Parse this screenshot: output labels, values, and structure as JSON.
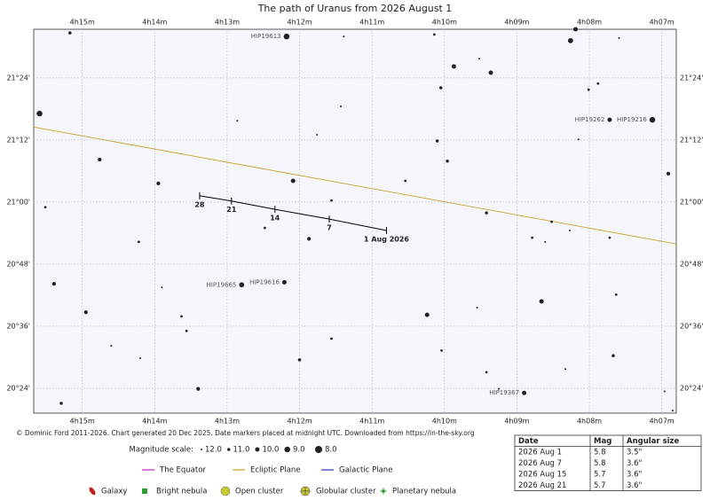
{
  "chart_data": {
    "type": "scatter",
    "title": "The path of Uranus from 2026 August 1",
    "xlim": [
      255.67,
      246.8
    ],
    "ylim": [
      1219.2,
      1293.4
    ],
    "xticks": [
      {
        "value": 255,
        "label": "4h15m"
      },
      {
        "value": 254,
        "label": "4h14m"
      },
      {
        "value": 253,
        "label": "4h13m"
      },
      {
        "value": 252,
        "label": "4h12m"
      },
      {
        "value": 251,
        "label": "4h11m"
      },
      {
        "value": 250,
        "label": "4h10m"
      },
      {
        "value": 249,
        "label": "4h09m"
      },
      {
        "value": 248,
        "label": "4h08m"
      },
      {
        "value": 247,
        "label": "4h07m"
      }
    ],
    "yticks": [
      {
        "value": 1224,
        "label": "20°24'"
      },
      {
        "value": 1236,
        "label": "20°36'"
      },
      {
        "value": 1248,
        "label": "20°48'"
      },
      {
        "value": 1260,
        "label": "21°00'"
      },
      {
        "value": 1272,
        "label": "21°12'"
      },
      {
        "value": 1284,
        "label": "21°24'"
      }
    ],
    "grid": true,
    "stars": [
      {
        "x": 255.17,
        "y": 1292.7,
        "mag": 11
      },
      {
        "x": 252.18,
        "y": 1292.0,
        "mag": 9,
        "label": "HIP19613"
      },
      {
        "x": 251.39,
        "y": 1292.0,
        "mag": 12
      },
      {
        "x": 250.14,
        "y": 1292.4,
        "mag": 11.5
      },
      {
        "x": 248.19,
        "y": 1293.4,
        "mag": 10
      },
      {
        "x": 248.26,
        "y": 1291.2,
        "mag": 9.5
      },
      {
        "x": 247.59,
        "y": 1291.7,
        "mag": 12
      },
      {
        "x": 249.52,
        "y": 1287.7,
        "mag": 12
      },
      {
        "x": 249.87,
        "y": 1286.2,
        "mag": 10
      },
      {
        "x": 249.36,
        "y": 1285.0,
        "mag": 10
      },
      {
        "x": 247.88,
        "y": 1282.9,
        "mag": 11.5
      },
      {
        "x": 248.01,
        "y": 1281.7,
        "mag": 11.5
      },
      {
        "x": 250.05,
        "y": 1282.1,
        "mag": 11
      },
      {
        "x": 255.59,
        "y": 1277.1,
        "mag": 9
      },
      {
        "x": 251.43,
        "y": 1278.5,
        "mag": 12
      },
      {
        "x": 252.86,
        "y": 1275.7,
        "mag": 12
      },
      {
        "x": 247.72,
        "y": 1275.9,
        "mag": 10,
        "label": "HIP19262"
      },
      {
        "x": 247.13,
        "y": 1275.9,
        "mag": 9,
        "label": "HIP19216"
      },
      {
        "x": 251.76,
        "y": 1273.0,
        "mag": 12
      },
      {
        "x": 250.1,
        "y": 1271.8,
        "mag": 11
      },
      {
        "x": 248.15,
        "y": 1272.1,
        "mag": 12
      },
      {
        "x": 254.76,
        "y": 1268.2,
        "mag": 10.5
      },
      {
        "x": 249.96,
        "y": 1267.9,
        "mag": 11
      },
      {
        "x": 252.09,
        "y": 1264.1,
        "mag": 10
      },
      {
        "x": 253.95,
        "y": 1263.6,
        "mag": 10.5
      },
      {
        "x": 250.54,
        "y": 1264.1,
        "mag": 11.5
      },
      {
        "x": 246.91,
        "y": 1265.5,
        "mag": 10.5
      },
      {
        "x": 251.56,
        "y": 1260.3,
        "mag": 11.5
      },
      {
        "x": 255.51,
        "y": 1259.0,
        "mag": 11.5
      },
      {
        "x": 249.42,
        "y": 1257.9,
        "mag": 11
      },
      {
        "x": 248.52,
        "y": 1256.2,
        "mag": 11.5
      },
      {
        "x": 248.27,
        "y": 1254.5,
        "mag": 12
      },
      {
        "x": 252.48,
        "y": 1255.0,
        "mag": 11.5
      },
      {
        "x": 251.87,
        "y": 1252.9,
        "mag": 10.5
      },
      {
        "x": 254.22,
        "y": 1252.3,
        "mag": 11.5
      },
      {
        "x": 248.79,
        "y": 1253.1,
        "mag": 11.5
      },
      {
        "x": 248.61,
        "y": 1252.3,
        "mag": 12
      },
      {
        "x": 247.72,
        "y": 1253.1,
        "mag": 11.5
      },
      {
        "x": 255.39,
        "y": 1244.2,
        "mag": 10.5
      },
      {
        "x": 252.21,
        "y": 1244.5,
        "mag": 10,
        "label": "HIP19616"
      },
      {
        "x": 252.8,
        "y": 1244.0,
        "mag": 9.5,
        "label": "HIP19665"
      },
      {
        "x": 253.9,
        "y": 1243.5,
        "mag": 12
      },
      {
        "x": 247.63,
        "y": 1242.1,
        "mag": 11.5
      },
      {
        "x": 254.95,
        "y": 1238.7,
        "mag": 10.5
      },
      {
        "x": 248.66,
        "y": 1240.8,
        "mag": 10
      },
      {
        "x": 250.24,
        "y": 1238.2,
        "mag": 10
      },
      {
        "x": 253.63,
        "y": 1237.9,
        "mag": 11.5
      },
      {
        "x": 249.55,
        "y": 1239.6,
        "mag": 12
      },
      {
        "x": 253.56,
        "y": 1235.1,
        "mag": 11.5
      },
      {
        "x": 251.56,
        "y": 1233.6,
        "mag": 11.5
      },
      {
        "x": 254.6,
        "y": 1232.2,
        "mag": 12
      },
      {
        "x": 250.04,
        "y": 1231.3,
        "mag": 11.5
      },
      {
        "x": 254.2,
        "y": 1229.8,
        "mag": 12
      },
      {
        "x": 252.0,
        "y": 1229.5,
        "mag": 11
      },
      {
        "x": 247.67,
        "y": 1230.3,
        "mag": 11
      },
      {
        "x": 249.42,
        "y": 1227.1,
        "mag": 11.5
      },
      {
        "x": 248.33,
        "y": 1227.7,
        "mag": 12
      },
      {
        "x": 253.4,
        "y": 1223.9,
        "mag": 10.5
      },
      {
        "x": 249.25,
        "y": 1223.9,
        "mag": 12
      },
      {
        "x": 248.9,
        "y": 1223.1,
        "mag": 10,
        "label": "HIP19367"
      },
      {
        "x": 255.29,
        "y": 1221.1,
        "mag": 11
      },
      {
        "x": 246.96,
        "y": 1223.4,
        "mag": 12
      },
      {
        "x": 246.85,
        "y": 1219.7,
        "mag": 12
      }
    ],
    "ecliptic": {
      "color": "#c9a227",
      "x": [
        255.67,
        246.8
      ],
      "y": [
        1274.5,
        1251.9
      ]
    },
    "uranus_path": {
      "color": "#000000",
      "x": [
        250.8,
        251.59,
        252.34,
        252.94,
        253.38
      ],
      "y": [
        1254.5,
        1256.7,
        1258.6,
        1260.2,
        1261.2
      ],
      "labels": [
        "1 Aug 2026",
        "7",
        "14",
        "21",
        "28"
      ]
    },
    "credit": "© Dominic Ford 2011-2026. Chart generated 20 Dec 2025. Date markers placed at midnight UTC. Downloaded from https://in-the-sky.org",
    "magnitude_scale": {
      "label": "Magnitude scale:",
      "items": [
        {
          "value": 12,
          "label": "12.0"
        },
        {
          "value": 11,
          "label": "11.0"
        },
        {
          "value": 10,
          "label": "10.0"
        },
        {
          "value": 9,
          "label": "9.0"
        },
        {
          "value": 8,
          "label": "8.0"
        }
      ]
    },
    "line_legend": [
      {
        "name": "The Equator",
        "color": "#c020c0"
      },
      {
        "name": "Ecliptic Plane",
        "color": "#c9a227"
      },
      {
        "name": "Galactic Plane",
        "color": "#3030c0"
      }
    ],
    "object_legend": [
      "Galaxy",
      "Bright nebula",
      "Open cluster",
      "Globular cluster",
      "Planetary nebula"
    ],
    "table": {
      "header": [
        "Date",
        "Mag",
        "Angular size"
      ],
      "rows": [
        [
          "2026 Aug 1",
          5.8,
          "3.5\""
        ],
        [
          "2026 Aug 7",
          5.8,
          "3.6\""
        ],
        [
          "2026 Aug 15",
          5.7,
          "3.6\""
        ],
        [
          "2026 Aug 21",
          5.7,
          "3.6\""
        ]
      ]
    }
  }
}
